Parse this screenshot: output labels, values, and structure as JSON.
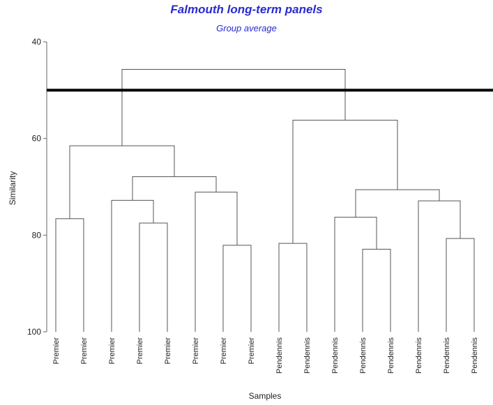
{
  "chart_data": {
    "type": "dendrogram",
    "title": "Falmouth long-term panels",
    "subtitle": "Group average",
    "xlabel": "Samples",
    "ylabel": "Similarity",
    "ylim": [
      40,
      100
    ],
    "yticks": [
      40,
      60,
      80,
      100
    ],
    "cut_line_similarity": 50,
    "leaves": [
      "Premier",
      "Premier",
      "Premier",
      "Premier",
      "Premier",
      "Premier",
      "Premier",
      "Premier",
      "Pendennis",
      "Pendennis",
      "Pendennis",
      "Pendennis",
      "Pendennis",
      "Pendennis",
      "Pendennis",
      "Pendennis"
    ],
    "merges": [
      {
        "id": "m1",
        "left": 0,
        "right": 1,
        "similarity": 76.6
      },
      {
        "id": "m2",
        "left": 3,
        "right": 4,
        "similarity": 77.5
      },
      {
        "id": "m3",
        "left": 2,
        "right": "m2",
        "similarity": 72.8
      },
      {
        "id": "m4",
        "left": 6,
        "right": 7,
        "similarity": 82.1
      },
      {
        "id": "m5",
        "left": 5,
        "right": "m4",
        "similarity": 71.1
      },
      {
        "id": "m6",
        "left": "m3",
        "right": "m5",
        "similarity": 67.9
      },
      {
        "id": "m7",
        "left": "m1",
        "right": "m6",
        "similarity": 61.5
      },
      {
        "id": "m8",
        "left": 8,
        "right": 9,
        "similarity": 81.7
      },
      {
        "id": "m9",
        "left": 11,
        "right": 12,
        "similarity": 82.9
      },
      {
        "id": "m10",
        "left": 10,
        "right": "m9",
        "similarity": 76.3
      },
      {
        "id": "m11",
        "left": 14,
        "right": 15,
        "similarity": 80.7
      },
      {
        "id": "m12",
        "left": 13,
        "right": "m11",
        "similarity": 72.9
      },
      {
        "id": "m13",
        "left": "m10",
        "right": "m12",
        "similarity": 70.6
      },
      {
        "id": "m14",
        "left": "m8",
        "right": "m13",
        "similarity": 56.2
      },
      {
        "id": "m15",
        "left": "m7",
        "right": "m14",
        "similarity": 45.7
      }
    ],
    "grid": false
  }
}
